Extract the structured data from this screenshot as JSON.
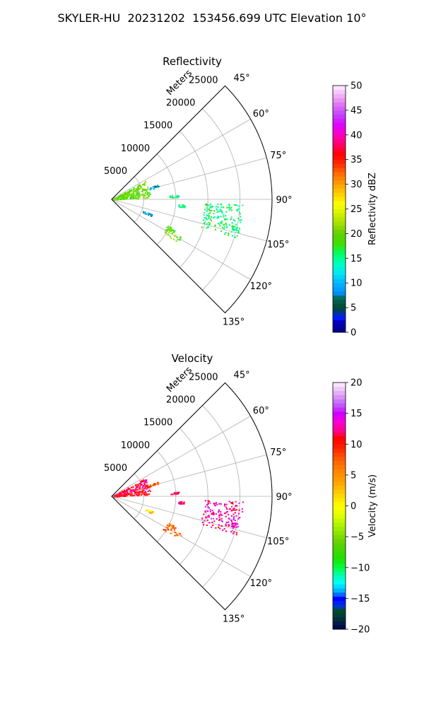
{
  "figure": {
    "title": "SKYLER-HU  20231202  153456.699 UTC Elevation 10°"
  },
  "chart_data": [
    {
      "type": "polar-sector",
      "title": "Reflectivity",
      "range_label": "Meters",
      "theta_ticks": [
        "45°",
        "60°",
        "75°",
        "90°",
        "105°",
        "120°",
        "135°"
      ],
      "theta_values": [
        45,
        60,
        75,
        90,
        105,
        120,
        135
      ],
      "theta_range": [
        45,
        135
      ],
      "r_ticks": [
        "5000",
        "10000",
        "15000",
        "20000",
        "25000"
      ],
      "r_values": [
        5000,
        10000,
        15000,
        20000,
        25000
      ],
      "r_range": [
        0,
        25000
      ],
      "grid": true,
      "colorbar": {
        "label": "Reflectivity dBZ",
        "min": 0,
        "max": 50,
        "tick_labels": [
          "0",
          "5",
          "10",
          "15",
          "20",
          "25",
          "30",
          "35",
          "40",
          "45",
          "50"
        ],
        "ticks": [
          0,
          5,
          10,
          15,
          20,
          25,
          30,
          35,
          40,
          45,
          50
        ]
      },
      "echo_regions": [
        {
          "az": [
            61,
            87
          ],
          "r": [
            300,
            6000
          ],
          "value": 20
        },
        {
          "az": [
            72,
            75
          ],
          "r": [
            6000,
            7600
          ],
          "value": 9
        },
        {
          "az": [
            86,
            88
          ],
          "r": [
            9000,
            10400
          ],
          "value": 15
        },
        {
          "az": [
            94,
            96
          ],
          "r": [
            10400,
            11400
          ],
          "value": 15
        },
        {
          "az": [
            102,
            104
          ],
          "r": [
            19100,
            20000
          ],
          "value": 15
        },
        {
          "az": [
            92,
            107
          ],
          "r": [
            14400,
            20400
          ],
          "value": 16
        },
        {
          "az": [
            110,
            113
          ],
          "r": [
            5200,
            6800
          ],
          "value": 8
        },
        {
          "az": [
            115,
            118
          ],
          "r": [
            9500,
            11000
          ],
          "value": 19
        },
        {
          "az": [
            118,
            123
          ],
          "r": [
            9400,
            12400
          ],
          "value": 20
        }
      ]
    },
    {
      "type": "polar-sector",
      "title": "Velocity",
      "range_label": "Meters",
      "theta_ticks": [
        "45°",
        "60°",
        "75°",
        "90°",
        "105°",
        "120°",
        "135°"
      ],
      "theta_values": [
        45,
        60,
        75,
        90,
        105,
        120,
        135
      ],
      "theta_range": [
        45,
        135
      ],
      "r_ticks": [
        "5000",
        "10000",
        "15000",
        "20000",
        "25000"
      ],
      "r_values": [
        5000,
        10000,
        15000,
        20000,
        25000
      ],
      "r_range": [
        0,
        25000
      ],
      "grid": true,
      "colorbar": {
        "label": "Velocity (m/s)",
        "min": -20,
        "max": 20,
        "tick_labels": [
          "−20",
          "−15",
          "−10",
          "−5",
          "0",
          "5",
          "10",
          "15",
          "20"
        ],
        "ticks": [
          -20,
          -15,
          -10,
          -5,
          0,
          5,
          10,
          15,
          20
        ]
      },
      "echo_regions": [
        {
          "az": [
            61,
            87
          ],
          "r": [
            300,
            6000
          ],
          "value": 11
        },
        {
          "az": [
            72,
            75
          ],
          "r": [
            6000,
            7600
          ],
          "value": 8
        },
        {
          "az": [
            86,
            88
          ],
          "r": [
            9000,
            10400
          ],
          "value": 12
        },
        {
          "az": [
            94,
            96
          ],
          "r": [
            10400,
            11400
          ],
          "value": 12
        },
        {
          "az": [
            102,
            104
          ],
          "r": [
            19100,
            20000
          ],
          "value": 14
        },
        {
          "az": [
            92,
            107
          ],
          "r": [
            14400,
            20400
          ],
          "value": 13
        },
        {
          "az": [
            110,
            113
          ],
          "r": [
            5200,
            6800
          ],
          "value": 2
        },
        {
          "az": [
            115,
            118
          ],
          "r": [
            9500,
            11000
          ],
          "value": 7
        },
        {
          "az": [
            118,
            123
          ],
          "r": [
            9400,
            12400
          ],
          "value": 7
        }
      ]
    }
  ]
}
